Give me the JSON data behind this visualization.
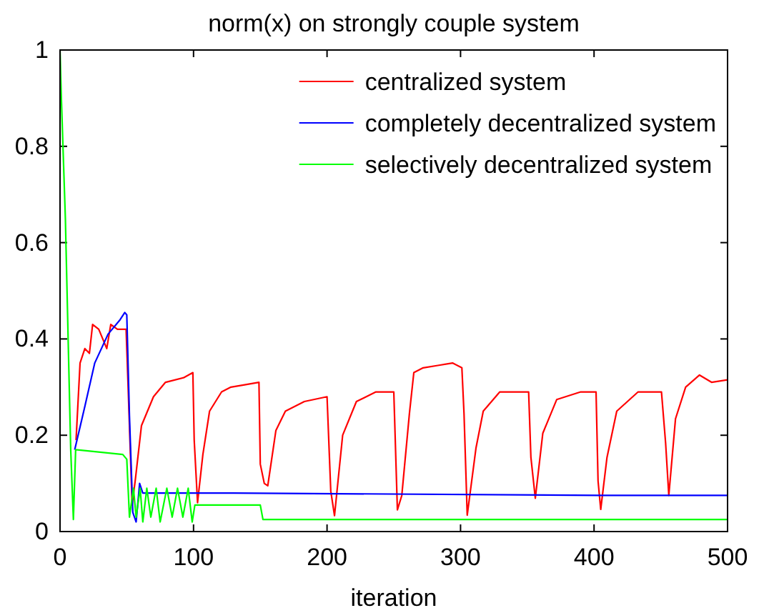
{
  "chart_data": {
    "type": "line",
    "title": "norm(x) on strongly couple system",
    "xlabel": "iteration",
    "xlim": [
      0,
      500
    ],
    "ylim": [
      0,
      1
    ],
    "xticks": [
      0,
      100,
      200,
      300,
      400,
      500
    ],
    "yticks": [
      0,
      0.2,
      0.4,
      0.6,
      0.8,
      1
    ],
    "grid": false,
    "legend": "top right",
    "marker": "none",
    "line_style": "solid",
    "series": [
      {
        "name": "centralized system",
        "color": "#ff0000",
        "x": [
          12,
          15,
          18.6,
          22,
          24.4,
          29,
          35,
          38,
          43,
          49.5,
          50,
          51,
          54,
          56.5,
          61,
          70,
          79,
          93,
          99.5,
          100.5,
          103,
          107,
          112,
          121,
          128,
          139,
          149,
          150,
          153,
          155.6,
          161.7,
          168.8,
          183,
          200,
          202.8,
          205.6,
          211.7,
          222,
          236.6,
          250,
          252.7,
          256,
          261.7,
          265,
          272,
          283,
          294,
          301,
          302.6,
          305,
          311.6,
          317,
          329.4,
          340,
          351,
          352.7,
          356,
          361.6,
          372,
          390,
          401.5,
          403,
          405,
          409.7,
          417,
          433,
          450.5,
          453.6,
          456,
          461,
          468.6,
          479,
          488,
          500
        ],
        "values": [
          0.19,
          0.35,
          0.38,
          0.37,
          0.43,
          0.42,
          0.38,
          0.43,
          0.42,
          0.42,
          0.38,
          0.3,
          0.055,
          0.11,
          0.22,
          0.28,
          0.31,
          0.32,
          0.33,
          0.19,
          0.06,
          0.16,
          0.25,
          0.29,
          0.3,
          0.305,
          0.31,
          0.14,
          0.1,
          0.095,
          0.21,
          0.25,
          0.27,
          0.28,
          0.084,
          0.033,
          0.2,
          0.27,
          0.29,
          0.29,
          0.045,
          0.075,
          0.245,
          0.33,
          0.34,
          0.345,
          0.35,
          0.34,
          0.245,
          0.034,
          0.174,
          0.25,
          0.29,
          0.29,
          0.29,
          0.154,
          0.069,
          0.204,
          0.274,
          0.29,
          0.29,
          0.105,
          0.046,
          0.154,
          0.25,
          0.29,
          0.29,
          0.184,
          0.075,
          0.234,
          0.3,
          0.325,
          0.31,
          0.315
        ]
      },
      {
        "name": "completely decentralized system",
        "color": "#0000ff",
        "x": [
          11,
          18.6,
          26,
          36,
          45,
          48.5,
          50,
          52,
          54.5,
          57,
          59.6,
          62,
          130,
          405,
          500
        ],
        "values": [
          0.17,
          0.26,
          0.35,
          0.41,
          0.44,
          0.455,
          0.45,
          0.24,
          0.04,
          0.02,
          0.1,
          0.08,
          0.08,
          0.075,
          0.075
        ]
      },
      {
        "name": "selectively decentralized system",
        "color": "#00ff00",
        "x": [
          0,
          1,
          4,
          6.4,
          8,
          10,
          11.7,
          47,
          50,
          52,
          55,
          57,
          60,
          62,
          65,
          68,
          72,
          75,
          80,
          84,
          88,
          92,
          96,
          99,
          101,
          150,
          152,
          500
        ],
        "values": [
          1,
          0.9,
          0.65,
          0.36,
          0.17,
          0.025,
          0.17,
          0.16,
          0.15,
          0.03,
          0.09,
          0.03,
          0.09,
          0.02,
          0.09,
          0.03,
          0.09,
          0.02,
          0.09,
          0.03,
          0.09,
          0.03,
          0.09,
          0.02,
          0.055,
          0.055,
          0.025,
          0.025
        ]
      }
    ]
  }
}
